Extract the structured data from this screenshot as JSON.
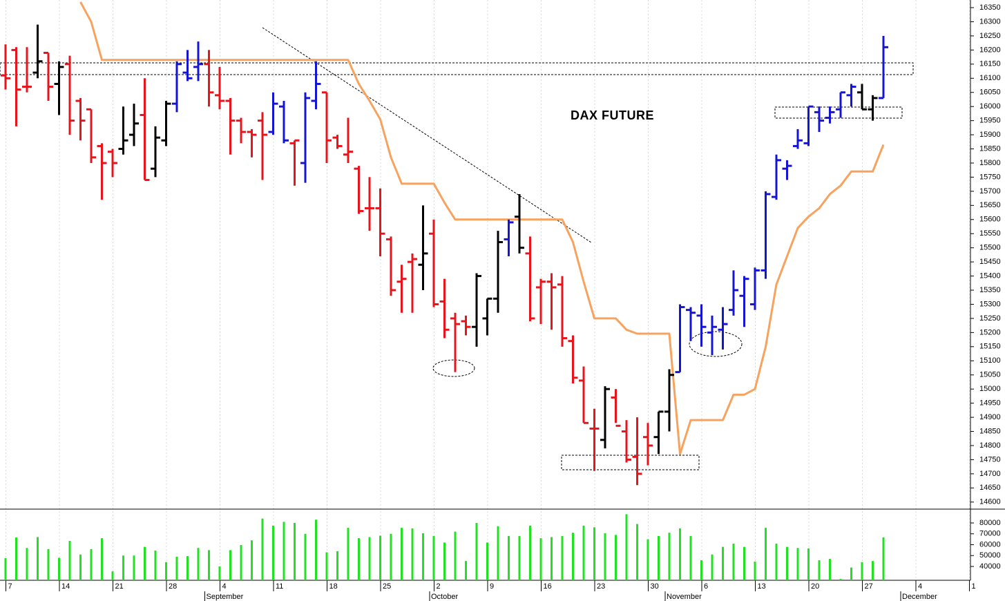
{
  "chart_data": [
    {
      "type": "ohlc",
      "title": "DAX FUTURE",
      "open": [
        16110,
        16200,
        16070,
        16120,
        16190,
        16080,
        16150,
        16020,
        15990,
        15860,
        15840,
        15850,
        15900,
        15970,
        15780,
        15880,
        16010,
        16120,
        16140,
        16150,
        16040,
        16020,
        15950,
        15910,
        15950,
        15910,
        16000,
        15870,
        15800,
        16020,
        16050,
        15890,
        15830,
        15780,
        15640,
        15640,
        15530,
        15380,
        15450,
        15440,
        15550,
        15310,
        15250,
        15240,
        15220,
        15250,
        15320,
        15530,
        15610,
        15480,
        15360,
        15380,
        15370,
        15170,
        15030,
        14860,
        14820,
        14970,
        14850,
        14760,
        14830,
        14830,
        14920,
        15060,
        15280,
        15260,
        15200,
        15210,
        15280,
        15330,
        15300,
        15420,
        15680,
        15780,
        15860,
        15870,
        15980,
        15960,
        15990,
        16040,
        16050,
        15990,
        16030
      ],
      "high": [
        16220,
        16210,
        16210,
        16290,
        16190,
        16160,
        16180,
        16030,
        15990,
        15870,
        15850,
        16000,
        16010,
        16100,
        15930,
        16020,
        16160,
        16200,
        16230,
        16200,
        16140,
        16030,
        15960,
        15920,
        15980,
        16050,
        16020,
        15880,
        16050,
        16160,
        16050,
        15900,
        15960,
        15790,
        15750,
        15710,
        15540,
        15440,
        15480,
        15650,
        15600,
        15390,
        15270,
        15260,
        15410,
        15320,
        15560,
        15600,
        15690,
        15540,
        15390,
        15410,
        15400,
        15190,
        15080,
        14930,
        15010,
        15000,
        14890,
        14900,
        14880,
        14920,
        15070,
        15300,
        15290,
        15300,
        15260,
        15290,
        15420,
        15400,
        15430,
        15700,
        15830,
        15810,
        15920,
        16000,
        16000,
        16000,
        16050,
        16080,
        16080,
        16040,
        16250
      ],
      "low": [
        16060,
        15930,
        16050,
        16100,
        16020,
        15970,
        15900,
        15880,
        15800,
        15670,
        15750,
        15830,
        15860,
        15740,
        15750,
        15860,
        15980,
        16090,
        16090,
        16000,
        15990,
        15830,
        15870,
        15820,
        15740,
        15900,
        15870,
        15720,
        15730,
        15990,
        15800,
        15850,
        15800,
        15620,
        15560,
        15470,
        15330,
        15270,
        15270,
        15350,
        15290,
        15180,
        15060,
        15190,
        15150,
        15190,
        15270,
        15470,
        15480,
        15240,
        15230,
        15210,
        15150,
        15020,
        14880,
        14710,
        14790,
        14880,
        14740,
        14660,
        14730,
        14770,
        14850,
        15060,
        15170,
        15150,
        15120,
        15140,
        15260,
        15220,
        15280,
        15390,
        15670,
        15740,
        15850,
        15860,
        15910,
        15940,
        15960,
        16000,
        15990,
        15950,
        16030
      ],
      "close": [
        16100,
        16060,
        16070,
        16160,
        16070,
        16140,
        15950,
        15950,
        15820,
        15800,
        15800,
        15880,
        15940,
        15740,
        15890,
        16010,
        16150,
        16100,
        16150,
        16050,
        16020,
        15950,
        15910,
        15900,
        15900,
        16010,
        15880,
        15880,
        16030,
        16080,
        15880,
        15860,
        15840,
        15630,
        15640,
        15550,
        15350,
        15390,
        15460,
        15480,
        15300,
        15210,
        15230,
        15220,
        15400,
        15320,
        15520,
        15590,
        15500,
        15250,
        15380,
        15360,
        15180,
        15040,
        14880,
        14860,
        15000,
        14870,
        14750,
        14700,
        14800,
        14920,
        15050,
        15290,
        15270,
        15220,
        15220,
        15230,
        15350,
        15390,
        15420,
        15690,
        15810,
        15790,
        15880,
        16000,
        15950,
        15980,
        16050,
        16070,
        15990,
        16030,
        16210
      ],
      "colors": [
        "#e8141c",
        "#e8141c",
        "#e8141c",
        "#000000",
        "#e8141c",
        "#000000",
        "#e8141c",
        "#e8141c",
        "#e8141c",
        "#e8141c",
        "#e8141c",
        "#000000",
        "#000000",
        "#e8141c",
        "#000000",
        "#000000",
        "#1414d2",
        "#1414d2",
        "#1414d2",
        "#e8141c",
        "#e8141c",
        "#e8141c",
        "#e8141c",
        "#e8141c",
        "#e8141c",
        "#1414d2",
        "#1414d2",
        "#e8141c",
        "#1414d2",
        "#1414d2",
        "#e8141c",
        "#e8141c",
        "#e8141c",
        "#e8141c",
        "#e8141c",
        "#e8141c",
        "#e8141c",
        "#e8141c",
        "#e8141c",
        "#000000",
        "#e8141c",
        "#e8141c",
        "#e8141c",
        "#e8141c",
        "#000000",
        "#000000",
        "#000000",
        "#1414d2",
        "#000000",
        "#e8141c",
        "#e8141c",
        "#e8141c",
        "#e8141c",
        "#e8141c",
        "#e8141c",
        "#e8141c",
        "#000000",
        "#e8141c",
        "#e8141c",
        "#e8141c",
        "#e8141c",
        "#000000",
        "#000000",
        "#1414d2",
        "#1414d2",
        "#1414d2",
        "#1414d2",
        "#1414d2",
        "#1414d2",
        "#1414d2",
        "#1414d2",
        "#1414d2",
        "#1414d2",
        "#1414d2",
        "#1414d2",
        "#1414d2",
        "#1414d2",
        "#1414d2",
        "#1414d2",
        "#1414d2",
        "#000000",
        "#000000",
        "#1414d2"
      ],
      "line": {
        "color": "#f7a25e",
        "values": [
          null,
          null,
          null,
          null,
          null,
          null,
          null,
          16370,
          16300,
          16165,
          16165,
          16165,
          16165,
          16165,
          16165,
          16165,
          16165,
          16165,
          16165,
          16165,
          16165,
          16165,
          16165,
          16165,
          16165,
          16165,
          16165,
          16165,
          16165,
          16165,
          16165,
          16165,
          16165,
          16080,
          16020,
          15955,
          15820,
          15727,
          15727,
          15727,
          15727,
          15660,
          15600,
          15600,
          15600,
          15600,
          15600,
          15600,
          15600,
          15600,
          15600,
          15600,
          15600,
          15520,
          15380,
          15250,
          15250,
          15250,
          15210,
          15196,
          15196,
          15196,
          15196,
          14770,
          14890,
          14890,
          14890,
          14890,
          14980,
          14980,
          15000,
          15150,
          15370,
          15470,
          15570,
          15610,
          15640,
          15690,
          15720,
          15770,
          15770,
          15770,
          15865
        ]
      },
      "ylim": [
        14575,
        16377
      ],
      "yticks": [
        14600,
        14650,
        14700,
        14750,
        14800,
        14850,
        14900,
        14950,
        15000,
        15050,
        15100,
        15150,
        15200,
        15250,
        15300,
        15350,
        15400,
        15450,
        15500,
        15550,
        15600,
        15650,
        15700,
        15750,
        15800,
        15850,
        15900,
        15950,
        16000,
        16050,
        16100,
        16150,
        16200,
        16250,
        16300,
        16350
      ],
      "xticks": [
        {
          "value": 0,
          "label": "7"
        },
        {
          "value": 5,
          "label": "14"
        },
        {
          "value": 10,
          "label": "21"
        },
        {
          "value": 15,
          "label": "28"
        },
        {
          "value": 20,
          "label": "4"
        },
        {
          "value": 25,
          "label": "11"
        },
        {
          "value": 30,
          "label": "18"
        },
        {
          "value": 35,
          "label": "25"
        },
        {
          "value": 40,
          "label": "2"
        },
        {
          "value": 45,
          "label": "9"
        },
        {
          "value": 50,
          "label": "16"
        },
        {
          "value": 55,
          "label": "23"
        },
        {
          "value": 60,
          "label": "30"
        },
        {
          "value": 65,
          "label": "6"
        },
        {
          "value": 70,
          "label": "13"
        },
        {
          "value": 75,
          "label": "20"
        },
        {
          "value": 80,
          "label": "27"
        },
        {
          "value": 85,
          "label": "4"
        },
        {
          "value": 90,
          "label": "1"
        }
      ],
      "months": [
        {
          "value": 19,
          "label": "September"
        },
        {
          "value": 40,
          "label": "October"
        },
        {
          "value": 62,
          "label": "November"
        },
        {
          "value": 84,
          "label": "December"
        }
      ]
    },
    {
      "type": "bar",
      "color": "#22e022",
      "values": [
        47600,
        66700,
        57000,
        67000,
        56000,
        48000,
        63500,
        51000,
        56000,
        66000,
        35500,
        50000,
        50000,
        58000,
        54600,
        44000,
        49000,
        49500,
        57000,
        55000,
        40000,
        55000,
        59700,
        64000,
        84000,
        77500,
        81000,
        80000,
        70000,
        83000,
        53000,
        54000,
        75500,
        66000,
        67000,
        68300,
        70000,
        75500,
        75000,
        70500,
        68000,
        62000,
        72000,
        45000,
        80000,
        62000,
        77000,
        68000,
        68000,
        77500,
        66000,
        67000,
        68000,
        71000,
        77500,
        76000,
        70500,
        69000,
        88000,
        79000,
        65000,
        68000,
        71000,
        75000,
        68000,
        45700,
        51000,
        58000,
        61000,
        58000,
        44500,
        75500,
        61000,
        58000,
        57000,
        56500,
        45700,
        47000,
        28600,
        39000,
        44000,
        45000,
        66700
      ],
      "ylim": [
        27300,
        92700
      ],
      "yticks": [
        40000,
        50000,
        60000,
        70000,
        80000
      ]
    }
  ]
}
